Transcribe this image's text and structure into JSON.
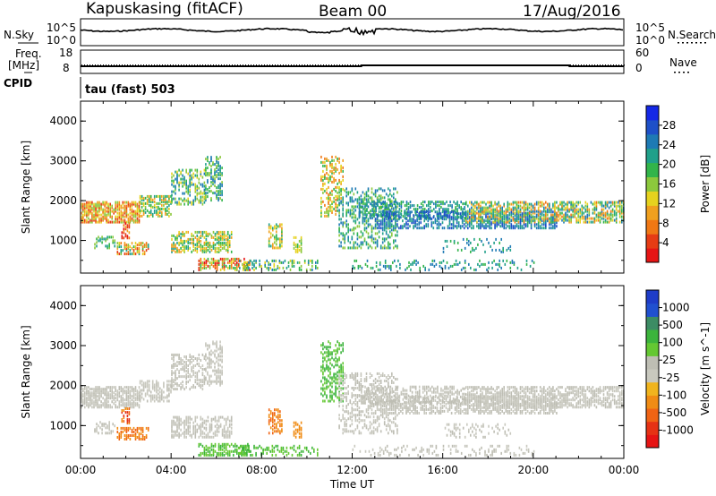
{
  "header": {
    "station": "Kapuskasing (fitACF)",
    "beam": "Beam 00",
    "date": "17/Aug/2016"
  },
  "strips": {
    "nsky_label": "N.Sky",
    "nsky_ticks": [
      "10^5",
      "10^0"
    ],
    "nsearch_label": "N.Search",
    "nsearch_ticks": [
      "10^5",
      "10^0"
    ],
    "freq_label_1": "Freq.",
    "freq_label_2": "[MHz]",
    "freq_ticks": [
      "18",
      "8"
    ],
    "nave_label": "Nave",
    "nave_ticks": [
      "60",
      "0"
    ],
    "cpid_label": "CPID",
    "cpid_text": "tau (fast) 503"
  },
  "chart_data": [
    {
      "type": "heatmap",
      "panel": "power",
      "xlabel": "",
      "ylabel": "Slant Range [km]",
      "yticks": [
        "4000",
        "3000",
        "2000",
        "1000"
      ],
      "xlim": [
        0,
        24
      ],
      "ylim": [
        180,
        4500
      ],
      "colorbar_label": "Power [dB]",
      "colorbar_ticks": [
        "28",
        "24",
        "20",
        "16",
        "12",
        "8",
        "4"
      ],
      "colors": [
        "#1428e6",
        "#1e50c8",
        "#1e7ab4",
        "#20a08a",
        "#32b44a",
        "#8cc83c",
        "#e6d21e",
        "#f0a01e",
        "#f07814",
        "#e63c14",
        "#e61414"
      ]
    },
    {
      "type": "heatmap",
      "panel": "velocity",
      "xlabel": "Time UT",
      "ylabel": "Slant Range [km]",
      "yticks": [
        "4000",
        "3000",
        "2000",
        "1000"
      ],
      "xticks": [
        "00:00",
        "04:00",
        "08:00",
        "12:00",
        "16:00",
        "20:00",
        "00:00"
      ],
      "xlim": [
        0,
        24
      ],
      "ylim": [
        180,
        4500
      ],
      "colorbar_label": "Velocity [m s^-1]",
      "colorbar_ticks": [
        "1000",
        "500",
        "100",
        "25",
        "-25",
        "-100",
        "-500",
        "-1000"
      ],
      "colors": [
        "#1e3cc8",
        "#2050d0",
        "#3c8c64",
        "#3cb43c",
        "#64c832",
        "#bebeb4",
        "#c8c8be",
        "#f0b41e",
        "#f08c14",
        "#f06414",
        "#e63214",
        "#e61414"
      ]
    }
  ]
}
